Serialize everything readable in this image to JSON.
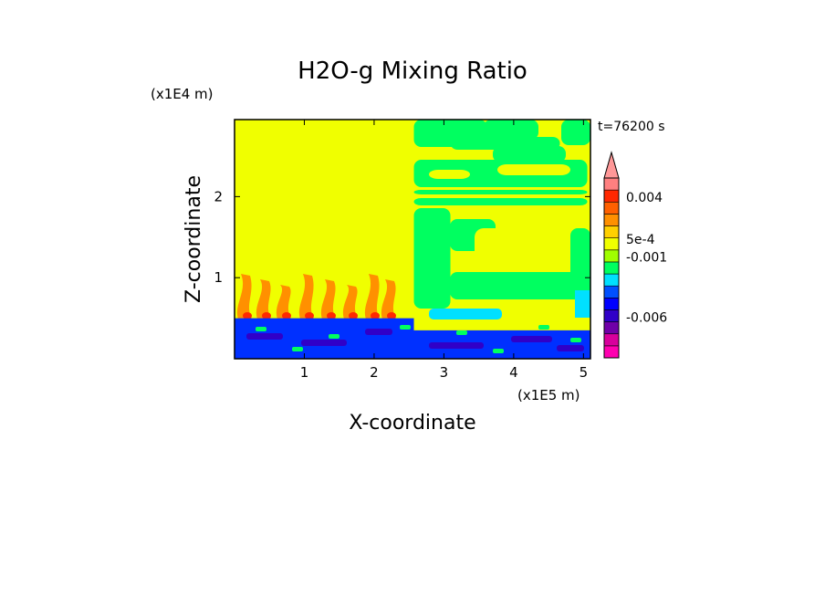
{
  "chart_data": {
    "type": "heatmap",
    "title": "H2O-g Mixing Ratio",
    "xlabel": "X-coordinate",
    "ylabel": "Z-coordinate",
    "x_multiplier": "(x1E5 m)",
    "y_multiplier": "(x1E4 m)",
    "time_label": "t=76200 s",
    "xlim": [
      0,
      5.1
    ],
    "ylim": [
      0,
      2.95
    ],
    "x_ticks": [
      1,
      2,
      3,
      4,
      5
    ],
    "x_tick_labels": [
      "1",
      "2",
      "3",
      "4",
      "5"
    ],
    "y_ticks": [
      1,
      2
    ],
    "y_tick_labels": [
      "1",
      "2"
    ],
    "colorbar": {
      "bands": [
        "#ff00b0",
        "#d8009c",
        "#7000a8",
        "#3000c8",
        "#0000ff",
        "#0050ff",
        "#00e0ff",
        "#00ff60",
        "#a0ff00",
        "#f0ff00",
        "#ffd000",
        "#ff9000",
        "#ff6000",
        "#ff2800",
        "#ff8080"
      ],
      "extend_color": "#ff9898",
      "labels": [
        {
          "text": "0.004",
          "value": 0.004
        },
        {
          "text": "5e-4",
          "value": 0.0005
        },
        {
          "text": "-0.001",
          "value": -0.001
        },
        {
          "text": "-0.006",
          "value": -0.006
        }
      ]
    },
    "regions": {
      "background_color": "#f0ff00",
      "bottom_layer_color": "#0030ff",
      "dark_layer_color": "#3000c8",
      "mid_green_color": "#00ff60",
      "cyan_color": "#00e0ff",
      "plume_color": "#ff9000",
      "plume_core_color": "#ff2800",
      "boundary_x": 2.57,
      "bottom_layer_top_left": 0.5,
      "bottom_layer_top_right": 0.35
    }
  }
}
